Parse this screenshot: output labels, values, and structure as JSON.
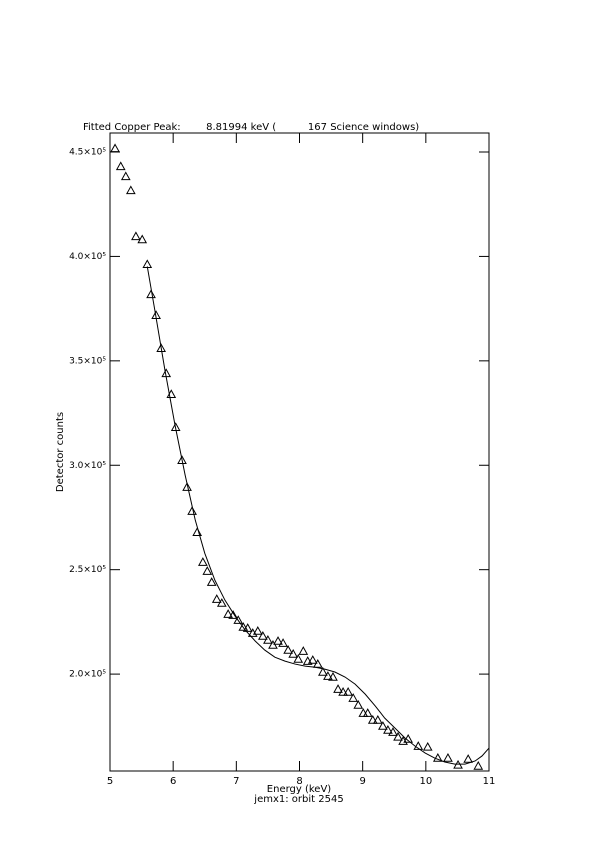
{
  "chart_data": {
    "type": "scatter",
    "title": "Fitted Copper Peak:        8.81994 keV (          167 Science windows)",
    "xlabel": "Energy (keV)",
    "subtitle": "jemx1: orbit 2545",
    "ylabel": "Detector counts",
    "xlim": [
      5,
      11
    ],
    "xticks": [
      5,
      6,
      7,
      8,
      9,
      10,
      11
    ],
    "ylim": [
      153600,
      459100
    ],
    "yticks": [
      {
        "value": 200000,
        "label": "2.0×10⁵"
      },
      {
        "value": 250000,
        "label": "2.5×10⁵"
      },
      {
        "value": 300000,
        "label": "3.0×10⁵"
      },
      {
        "value": 350000,
        "label": "3.5×10⁵"
      },
      {
        "value": 400000,
        "label": "4.0×10⁵"
      },
      {
        "value": 450000,
        "label": "4.5×10⁵"
      }
    ],
    "series": [
      {
        "type": "scatter",
        "marker": "triangle",
        "color": "#000000",
        "x": [
          5.08,
          5.17,
          5.25,
          5.33,
          5.41,
          5.51,
          5.59,
          5.65,
          5.73,
          5.81,
          5.89,
          5.97,
          6.04,
          6.14,
          6.22,
          6.3,
          6.38,
          6.47,
          6.54,
          6.61,
          6.69,
          6.77,
          6.87,
          6.95,
          7.03,
          7.11,
          7.18,
          7.26,
          7.34,
          7.42,
          7.5,
          7.58,
          7.66,
          7.74,
          7.82,
          7.9,
          7.98,
          8.06,
          8.13,
          8.21,
          8.29,
          8.37,
          8.45,
          8.53,
          8.61,
          8.69,
          8.77,
          8.85,
          8.93,
          9.01,
          9.08,
          9.16,
          9.24,
          9.32,
          9.4,
          9.48,
          9.56,
          9.64,
          9.72,
          9.88,
          10.03,
          10.19,
          10.35,
          10.51,
          10.67,
          10.83
        ],
        "values": [
          451700,
          443100,
          438300,
          431600,
          409600,
          408100,
          396200,
          381800,
          371800,
          356000,
          344000,
          334000,
          318200,
          302400,
          289500,
          278000,
          267900,
          253600,
          249300,
          244000,
          235900,
          234000,
          228700,
          228200,
          225800,
          222500,
          222000,
          219600,
          220600,
          218200,
          216300,
          213900,
          215800,
          214800,
          211500,
          209600,
          207200,
          211000,
          206200,
          206700,
          204800,
          201000,
          199000,
          198600,
          192800,
          191400,
          191400,
          188500,
          185200,
          181300,
          181300,
          178000,
          178000,
          175100,
          173200,
          172200,
          169900,
          167900,
          168900,
          165500,
          165100,
          159800,
          159800,
          156500,
          159300,
          156000
        ]
      },
      {
        "type": "line",
        "color": "#000000",
        "x": [
          5.59,
          5.71,
          5.87,
          6.03,
          6.19,
          6.35,
          6.5,
          6.66,
          6.82,
          6.98,
          7.14,
          7.3,
          7.45,
          7.61,
          7.77,
          7.93,
          8.09,
          8.25,
          8.4,
          8.56,
          8.72,
          8.88,
          9.04,
          9.2,
          9.35,
          9.51,
          9.67,
          9.83,
          9.99,
          10.14,
          10.3,
          10.46,
          10.62,
          10.78,
          10.89,
          11.0
        ],
        "values": [
          395200,
          374200,
          345500,
          319100,
          295200,
          273700,
          257900,
          245000,
          235400,
          227800,
          221100,
          215800,
          211500,
          208100,
          206200,
          204800,
          203800,
          203300,
          202400,
          201000,
          198600,
          195200,
          190400,
          184700,
          178900,
          174200,
          169400,
          165500,
          162200,
          159800,
          157900,
          156900,
          156900,
          158400,
          160800,
          164600
        ]
      }
    ]
  }
}
